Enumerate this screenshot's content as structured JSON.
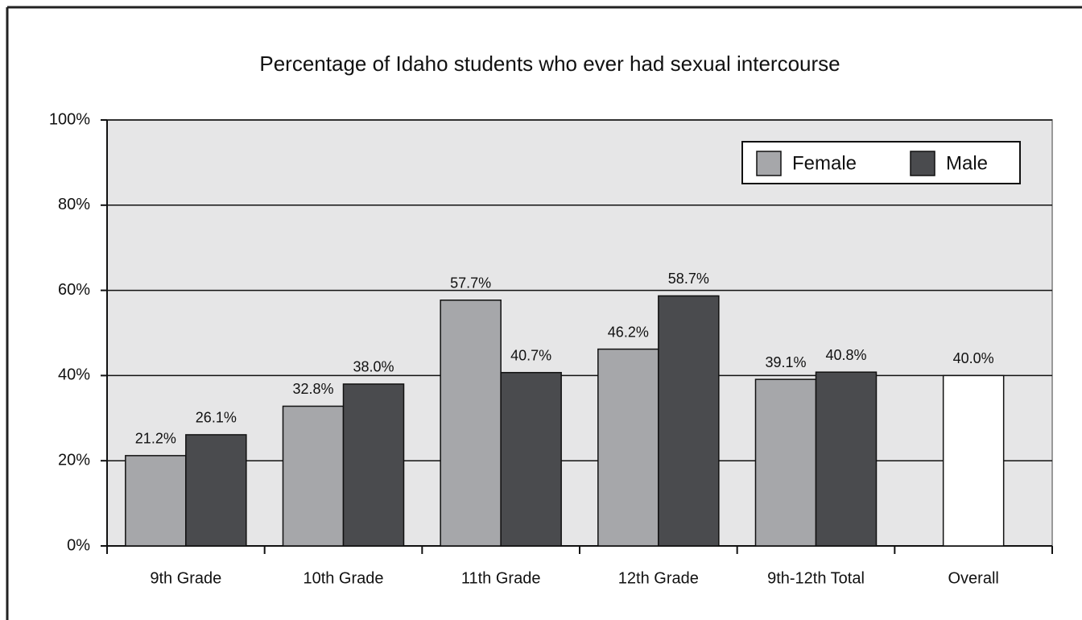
{
  "chart_data": {
    "type": "bar",
    "title": "Percentage of Idaho students who ever had sexual intercourse",
    "categories": [
      "9th Grade",
      "10th Grade",
      "11th Grade",
      "12th Grade",
      "9th-12th Total",
      "Overall"
    ],
    "series": [
      {
        "name": "Female",
        "color": "#a6a7aa",
        "values": [
          21.2,
          32.8,
          57.7,
          46.2,
          39.1,
          null
        ],
        "value_labels": [
          "21.2%",
          "32.8%",
          "57.7%",
          "46.2%",
          "39.1%",
          null
        ]
      },
      {
        "name": "Male",
        "color": "#4a4b4e",
        "values": [
          26.1,
          38.0,
          40.7,
          58.7,
          40.8,
          null
        ],
        "value_labels": [
          "26.1%",
          "38.0%",
          "40.7%",
          "58.7%",
          "40.8%",
          null
        ]
      },
      {
        "color": "#ffffff",
        "values": [
          null,
          null,
          null,
          null,
          null,
          40.0
        ],
        "value_labels": [
          null,
          null,
          null,
          null,
          null,
          "40.0%"
        ]
      }
    ],
    "ylim": [
      0,
      100
    ],
    "yticks": [
      {
        "value": 0,
        "label": "0%"
      },
      {
        "value": 20,
        "label": "20%"
      },
      {
        "value": 40,
        "label": "40%"
      },
      {
        "value": 60,
        "label": "60%"
      },
      {
        "value": 80,
        "label": "80%"
      },
      {
        "value": 100,
        "label": "100%"
      }
    ],
    "grid": true,
    "legend": "top-right"
  }
}
